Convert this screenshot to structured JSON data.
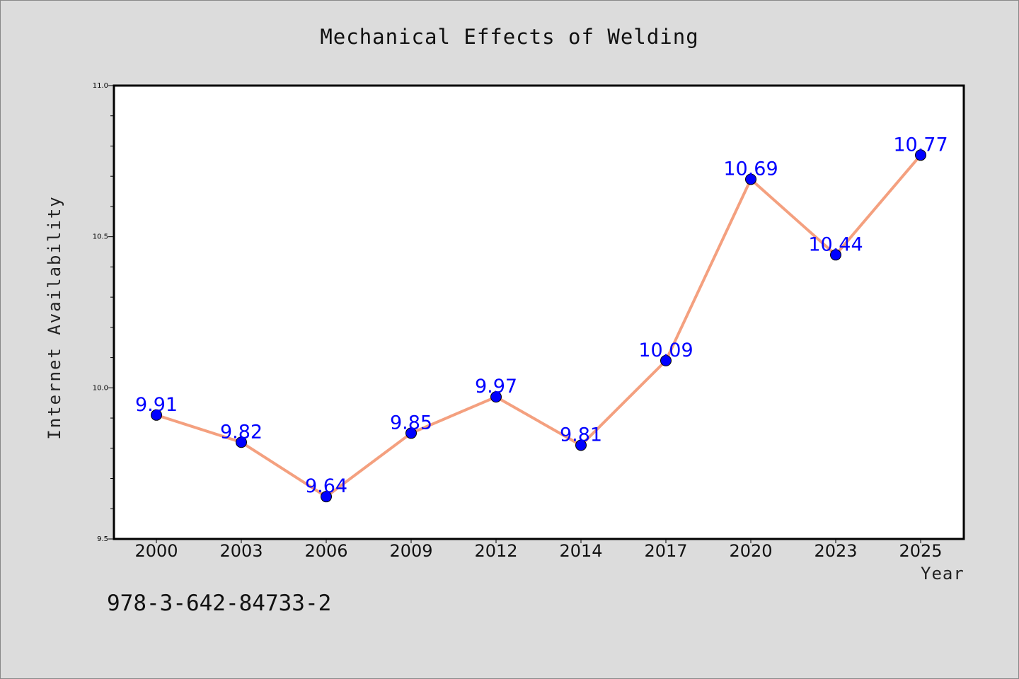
{
  "chart_data": {
    "type": "line",
    "title": "Mechanical Effects of Welding",
    "xlabel": "Year",
    "ylabel": "Internet Availability",
    "categories": [
      "2000",
      "2003",
      "2006",
      "2009",
      "2012",
      "2014",
      "2017",
      "2020",
      "2023",
      "2025"
    ],
    "values": [
      9.91,
      9.82,
      9.64,
      9.85,
      9.97,
      9.81,
      10.09,
      10.69,
      10.44,
      10.77
    ],
    "data_labels": [
      "9.91",
      "9.82",
      "9.64",
      "9.85",
      "9.97",
      "9.81",
      "10.09",
      "10.69",
      "10.44",
      "10.77"
    ],
    "ylim": [
      9.5,
      11.0
    ],
    "y_ticks": [
      "9.5",
      "10.0",
      "10.5",
      "11.0"
    ],
    "grid": false,
    "line_color": "#f4a07f",
    "marker_color": "#0000ff",
    "label_color": "#0000ff"
  },
  "annotation": "978-3-642-84733-2"
}
